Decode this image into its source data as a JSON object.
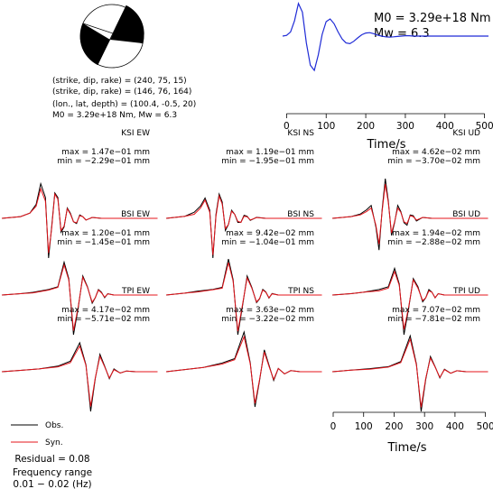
{
  "source_info": {
    "line1": "(strike, dip, rake) = (240, 75, 15)",
    "line2": "(strike, dip, rake) = (146, 76, 164)",
    "line3": "(lon., lat, depth) = (100.4, -0.5, 20)",
    "line4": "M0 = 3.29e+18 Nm, Mw = 6.3"
  },
  "colors": {
    "obs": "#000000",
    "syn": "#e4141b",
    "stf": "#1f2bd6",
    "beachball_fill": "#000000"
  },
  "legend": {
    "obs": "Obs.",
    "syn": "Syn."
  },
  "residual": "Residual = 0.08",
  "frequency": {
    "label": "Frequency range",
    "value": "0.01 − 0.02 (Hz)"
  },
  "chart_data": [
    {
      "type": "line",
      "id": "source-time-function",
      "annotations": [
        "M0 = 3.29e+18 Nm",
        "Mw = 6.3"
      ],
      "xlabel": "Time/s",
      "xlim": [
        -10,
        510
      ],
      "xticks": [
        0,
        100,
        200,
        300,
        400,
        500
      ],
      "series": [
        {
          "x": [
            -10,
            0,
            10,
            20,
            30,
            40,
            50,
            60,
            70,
            80,
            90,
            100,
            110,
            120,
            130,
            140,
            150,
            160,
            170,
            180,
            190,
            200,
            210,
            220,
            230,
            240,
            250,
            260,
            270,
            280,
            290,
            300,
            310,
            320,
            330,
            340,
            350,
            360,
            380,
            400,
            420,
            440,
            460,
            480,
            500,
            510
          ],
          "y": [
            0,
            0.02,
            0.12,
            0.45,
            0.95,
            0.7,
            -0.2,
            -0.85,
            -1.0,
            -0.55,
            0.05,
            0.42,
            0.5,
            0.36,
            0.12,
            -0.08,
            -0.2,
            -0.22,
            -0.15,
            -0.05,
            0.04,
            0.09,
            0.1,
            0.07,
            0.03,
            0.0,
            -0.02,
            -0.03,
            -0.02,
            -0.01,
            0.0,
            0.01,
            0.01,
            0.0,
            0.0,
            0.0,
            0.0,
            0.0,
            0.0,
            0.0,
            0.0,
            0.0,
            0.0,
            0.0,
            0.0,
            0.0
          ]
        }
      ]
    },
    {
      "type": "line",
      "id": "KSI-EW",
      "title": "KSI EW",
      "max": "max = 1.47e−01 mm",
      "min": "min = −2.29e−01 mm",
      "series": [
        {
          "name": "Obs.",
          "x": [
            0,
            60,
            90,
            110,
            125,
            140,
            150,
            160,
            170,
            180,
            190,
            200,
            210,
            220,
            230,
            240,
            250,
            260,
            270,
            290,
            320,
            350,
            400,
            450,
            500
          ],
          "y": [
            0,
            0.01,
            0.03,
            0.08,
            0.2,
            0.12,
            -0.229,
            -0.05,
            0.147,
            0.12,
            -0.08,
            -0.05,
            0.06,
            0.03,
            -0.02,
            -0.03,
            0.02,
            0.01,
            -0.01,
            0.005,
            0,
            0,
            0,
            0,
            0
          ]
        },
        {
          "name": "Syn.",
          "x": [
            0,
            60,
            90,
            110,
            125,
            140,
            150,
            160,
            170,
            180,
            190,
            200,
            210,
            220,
            230,
            240,
            250,
            260,
            270,
            290,
            320,
            350,
            400,
            450,
            500
          ],
          "y": [
            0,
            0.01,
            0.03,
            0.07,
            0.17,
            0.1,
            -0.2,
            -0.06,
            0.14,
            0.11,
            -0.07,
            -0.045,
            0.055,
            0.025,
            -0.02,
            -0.025,
            0.015,
            0.01,
            -0.01,
            0.005,
            0,
            0,
            0,
            0,
            0
          ]
        }
      ]
    },
    {
      "type": "line",
      "id": "KSI-NS",
      "title": "KSI NS",
      "max": "max = 1.19e−01 mm",
      "min": "min = −1.95e−01 mm",
      "series": [
        {
          "name": "Obs.",
          "x": [
            0,
            60,
            90,
            110,
            125,
            140,
            150,
            160,
            170,
            180,
            190,
            200,
            210,
            220,
            230,
            240,
            250,
            260,
            270,
            290,
            320,
            350,
            400,
            450,
            500
          ],
          "y": [
            0,
            0.01,
            0.03,
            0.06,
            0.1,
            0.04,
            -0.195,
            0.02,
            0.119,
            0.08,
            -0.06,
            -0.03,
            0.04,
            0.02,
            -0.02,
            -0.02,
            0.015,
            0.01,
            -0.01,
            0.005,
            0,
            0,
            0,
            0,
            0
          ]
        },
        {
          "name": "Syn.",
          "x": [
            0,
            60,
            90,
            110,
            125,
            140,
            150,
            160,
            170,
            180,
            190,
            200,
            210,
            220,
            230,
            240,
            250,
            260,
            270,
            290,
            320,
            350,
            400,
            450,
            500
          ],
          "y": [
            0,
            0.01,
            0.02,
            0.05,
            0.09,
            0.03,
            -0.18,
            0.01,
            0.11,
            0.07,
            -0.05,
            -0.03,
            0.035,
            0.02,
            -0.015,
            -0.02,
            0.01,
            0.008,
            -0.008,
            0.004,
            0,
            0,
            0,
            0,
            0
          ]
        }
      ]
    },
    {
      "type": "line",
      "id": "KSI-UD",
      "title": "KSI UD",
      "max": "max = 4.62e−02 mm",
      "min": "min = −3.70e−02 mm",
      "series": [
        {
          "name": "Obs.",
          "x": [
            0,
            60,
            90,
            110,
            125,
            140,
            150,
            160,
            170,
            180,
            190,
            200,
            210,
            220,
            230,
            240,
            250,
            260,
            270,
            290,
            320,
            350,
            400,
            450,
            500
          ],
          "y": [
            0,
            0.002,
            0.005,
            0.01,
            0.015,
            -0.01,
            -0.037,
            0.01,
            0.0462,
            0.02,
            -0.02,
            -0.005,
            0.015,
            0.008,
            -0.005,
            -0.008,
            0.004,
            0.003,
            -0.003,
            0.001,
            0,
            0,
            0,
            0,
            0
          ]
        },
        {
          "name": "Syn.",
          "x": [
            0,
            60,
            90,
            110,
            125,
            140,
            150,
            160,
            170,
            180,
            190,
            200,
            210,
            220,
            230,
            240,
            250,
            260,
            270,
            290,
            320,
            350,
            400,
            450,
            500
          ],
          "y": [
            0,
            0.002,
            0.004,
            0.008,
            0.012,
            -0.008,
            -0.03,
            0.008,
            0.04,
            0.018,
            -0.017,
            -0.004,
            0.012,
            0.007,
            -0.004,
            -0.006,
            0.003,
            0.002,
            -0.002,
            0.001,
            0,
            0,
            0,
            0,
            0
          ]
        }
      ]
    },
    {
      "type": "line",
      "id": "BSI-EW",
      "title": "BSI EW",
      "max": "max = 1.20e−01 mm",
      "min": "min = −1.45e−01 mm",
      "series": [
        {
          "name": "Obs.",
          "x": [
            0,
            60,
            100,
            150,
            180,
            200,
            215,
            230,
            245,
            260,
            275,
            290,
            300,
            310,
            320,
            330,
            340,
            360,
            380,
            400,
            450,
            500
          ],
          "y": [
            0,
            0.005,
            0.01,
            0.02,
            0.03,
            0.12,
            0.06,
            -0.145,
            -0.05,
            0.07,
            0.03,
            -0.03,
            -0.01,
            0.02,
            0.01,
            -0.01,
            0.005,
            0,
            0,
            0,
            0,
            0
          ]
        },
        {
          "name": "Syn.",
          "x": [
            0,
            60,
            100,
            150,
            180,
            200,
            215,
            230,
            245,
            260,
            275,
            290,
            300,
            310,
            320,
            330,
            340,
            360,
            380,
            400,
            450,
            500
          ],
          "y": [
            0,
            0.005,
            0.008,
            0.018,
            0.028,
            0.11,
            0.055,
            -0.13,
            -0.045,
            0.065,
            0.028,
            -0.026,
            -0.01,
            0.018,
            0.008,
            -0.008,
            0.004,
            0,
            0,
            0,
            0,
            0
          ]
        }
      ]
    },
    {
      "type": "line",
      "id": "BSI-NS",
      "title": "BSI NS",
      "max": "max = 9.42e−02 mm",
      "min": "min = −1.04e−01 mm",
      "series": [
        {
          "name": "Obs.",
          "x": [
            0,
            60,
            100,
            150,
            180,
            200,
            215,
            230,
            245,
            260,
            275,
            290,
            300,
            310,
            320,
            330,
            340,
            360,
            380,
            400,
            450,
            500
          ],
          "y": [
            0,
            0.005,
            0.01,
            0.015,
            0.02,
            0.0942,
            0.04,
            -0.104,
            -0.03,
            0.05,
            0.02,
            -0.02,
            -0.01,
            0.015,
            0.008,
            -0.008,
            0.004,
            0,
            0,
            0,
            0,
            0
          ]
        },
        {
          "name": "Syn.",
          "x": [
            0,
            60,
            100,
            150,
            180,
            200,
            215,
            230,
            245,
            260,
            275,
            290,
            300,
            310,
            320,
            330,
            340,
            360,
            380,
            400,
            450,
            500
          ],
          "y": [
            0,
            0.005,
            0.008,
            0.014,
            0.018,
            0.085,
            0.036,
            -0.095,
            -0.026,
            0.045,
            0.018,
            -0.018,
            -0.009,
            0.013,
            0.007,
            -0.007,
            0.003,
            0,
            0,
            0,
            0,
            0
          ]
        }
      ]
    },
    {
      "type": "line",
      "id": "BSI-UD",
      "title": "BSI UD",
      "max": "max = 1.94e−02 mm",
      "min": "min = −2.88e−02 mm",
      "series": [
        {
          "name": "Obs.",
          "x": [
            0,
            60,
            100,
            150,
            180,
            200,
            215,
            230,
            245,
            260,
            275,
            290,
            300,
            310,
            320,
            330,
            340,
            360,
            380,
            400,
            450,
            500
          ],
          "y": [
            0,
            0.001,
            0.002,
            0.004,
            0.006,
            0.0194,
            0.008,
            -0.0288,
            -0.01,
            0.012,
            0.006,
            -0.005,
            -0.002,
            0.004,
            0.002,
            -0.002,
            0.001,
            0,
            0,
            0,
            0,
            0
          ]
        },
        {
          "name": "Syn.",
          "x": [
            0,
            60,
            100,
            150,
            180,
            200,
            215,
            230,
            245,
            260,
            275,
            290,
            300,
            310,
            320,
            330,
            340,
            360,
            380,
            400,
            450,
            500
          ],
          "y": [
            0,
            0.001,
            0.002,
            0.003,
            0.005,
            0.017,
            0.007,
            -0.025,
            -0.009,
            0.011,
            0.005,
            -0.004,
            -0.002,
            0.003,
            0.002,
            -0.002,
            0.001,
            0,
            0,
            0,
            0,
            0
          ]
        }
      ]
    },
    {
      "type": "line",
      "id": "TPI-EW",
      "title": "TPI EW",
      "max": "max = 4.17e−02 mm",
      "min": "min = −5.71e−02 mm",
      "series": [
        {
          "name": "Obs.",
          "x": [
            0,
            60,
            120,
            180,
            220,
            250,
            270,
            285,
            300,
            315,
            330,
            345,
            360,
            380,
            400,
            430,
            460,
            500
          ],
          "y": [
            0,
            0.002,
            0.004,
            0.008,
            0.015,
            0.0417,
            0.01,
            -0.0571,
            -0.01,
            0.025,
            0.008,
            -0.01,
            0.004,
            -0.002,
            0.001,
            0,
            0,
            0
          ]
        },
        {
          "name": "Syn.",
          "x": [
            0,
            60,
            120,
            180,
            220,
            250,
            270,
            285,
            300,
            315,
            330,
            345,
            360,
            380,
            400,
            430,
            460,
            500
          ],
          "y": [
            0,
            0.002,
            0.004,
            0.007,
            0.013,
            0.037,
            0.009,
            -0.05,
            -0.009,
            0.022,
            0.007,
            -0.009,
            0.003,
            -0.002,
            0.001,
            0,
            0,
            0
          ]
        }
      ]
    },
    {
      "type": "line",
      "id": "TPI-NS",
      "title": "TPI NS",
      "max": "max = 3.63e−02 mm",
      "min": "min = −3.22e−02 mm",
      "series": [
        {
          "name": "Obs.",
          "x": [
            0,
            60,
            120,
            180,
            220,
            250,
            270,
            285,
            300,
            315,
            330,
            345,
            360,
            380,
            400,
            430,
            460,
            500
          ],
          "y": [
            0,
            0.002,
            0.004,
            0.008,
            0.012,
            0.0363,
            0.008,
            -0.0322,
            -0.008,
            0.02,
            0.006,
            -0.008,
            0.003,
            -0.002,
            0.001,
            0,
            0,
            0
          ]
        },
        {
          "name": "Syn.",
          "x": [
            0,
            60,
            120,
            180,
            220,
            250,
            270,
            285,
            300,
            315,
            330,
            345,
            360,
            380,
            400,
            430,
            460,
            500
          ],
          "y": [
            0,
            0.002,
            0.004,
            0.007,
            0.011,
            0.032,
            0.007,
            -0.029,
            -0.007,
            0.018,
            0.005,
            -0.007,
            0.003,
            -0.002,
            0.001,
            0,
            0,
            0
          ]
        }
      ]
    },
    {
      "type": "line",
      "id": "TPI-UD",
      "title": "TPI UD",
      "max": "max = 7.07e−02 mm",
      "min": "min = −7.81e−02 mm",
      "xlabel": "Time/s",
      "xlim": [
        0,
        510
      ],
      "xticks": [
        0,
        100,
        200,
        300,
        400,
        500
      ],
      "series": [
        {
          "name": "Obs.",
          "x": [
            0,
            60,
            120,
            180,
            220,
            250,
            270,
            285,
            300,
            315,
            330,
            345,
            360,
            380,
            400,
            430,
            460,
            500
          ],
          "y": [
            0,
            0.003,
            0.006,
            0.01,
            0.02,
            0.0707,
            0.015,
            -0.0781,
            -0.015,
            0.03,
            0.01,
            -0.012,
            0.005,
            -0.003,
            0.002,
            0,
            0,
            0
          ]
        },
        {
          "name": "Syn.",
          "x": [
            0,
            60,
            120,
            180,
            220,
            250,
            270,
            285,
            300,
            315,
            330,
            345,
            360,
            380,
            400,
            430,
            460,
            500
          ],
          "y": [
            0,
            0.003,
            0.005,
            0.009,
            0.018,
            0.064,
            0.013,
            -0.07,
            -0.013,
            0.027,
            0.009,
            -0.011,
            0.004,
            -0.003,
            0.002,
            0,
            0,
            0
          ]
        }
      ]
    }
  ]
}
